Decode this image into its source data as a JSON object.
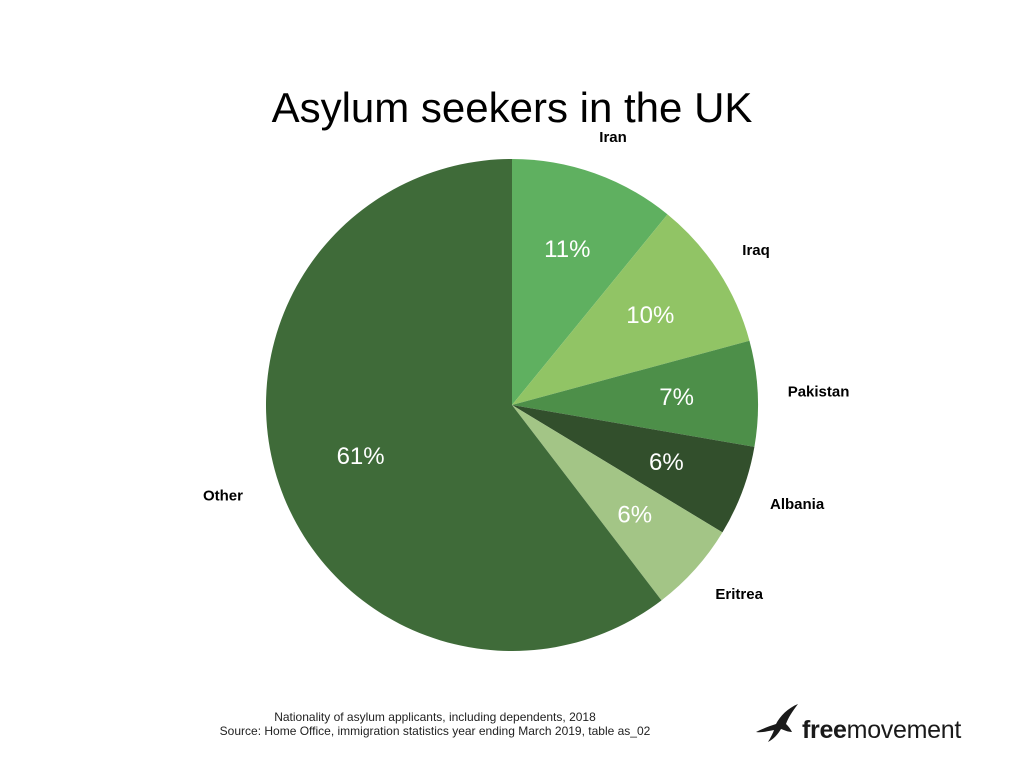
{
  "chart_data": {
    "type": "pie",
    "title": "Asylum seekers in the UK",
    "slices": [
      {
        "label": "Iran",
        "value": 11,
        "display": "11%",
        "color": "#5fb060"
      },
      {
        "label": "Iraq",
        "value": 10,
        "display": "10%",
        "color": "#91c465"
      },
      {
        "label": "Pakistan",
        "value": 7,
        "display": "7%",
        "color": "#4d8f49"
      },
      {
        "label": "Albania",
        "value": 6,
        "display": "6%",
        "color": "#324f2c"
      },
      {
        "label": "Eritrea",
        "value": 6,
        "display": "6%",
        "color": "#a3c586"
      },
      {
        "label": "Other",
        "value": 61,
        "display": "61%",
        "color": "#3f6b39"
      }
    ],
    "start_angle": "top, clockwise",
    "legend": "none (labels outside slices)"
  },
  "caption": {
    "line1": "Nationality of asylum applicants, including dependents, 2018",
    "line2": "Source: Home Office, immigration statistics year ending March 2019, table as_02"
  },
  "brand": {
    "bold_part": "free",
    "regular_part": "movement",
    "icon": "bird-icon",
    "color": "#1a1a1a"
  }
}
